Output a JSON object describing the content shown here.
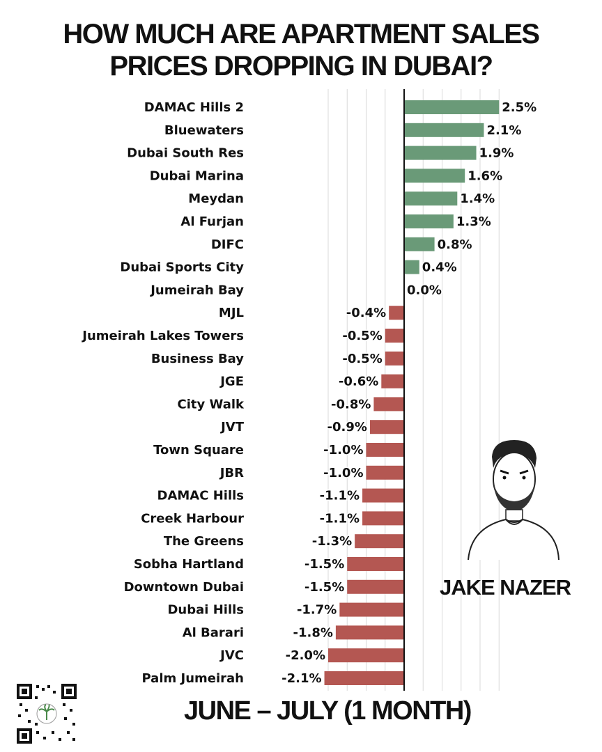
{
  "title_line1": "HOW MUCH ARE APARTMENT SALES",
  "title_line2": "PRICES DROPPING IN DUBAI?",
  "author_name": "JAKE NAZER",
  "colors": {
    "positive": "#6a9a78",
    "negative": "#b45752",
    "axis": "#111111",
    "grid": "#d8d8d8"
  },
  "chart_data": {
    "type": "bar",
    "orientation": "horizontal",
    "title": "HOW MUCH ARE APARTMENT SALES PRICES DROPPING IN DUBAI?",
    "xlabel": "JUNE – JULY (1 MONTH)",
    "ylabel": "",
    "grid": true,
    "xlim": [
      -2.3,
      2.7
    ],
    "categories": [
      "DAMAC Hills 2",
      "Bluewaters",
      "Dubai South Res",
      "Dubai Marina",
      "Meydan",
      "Al Furjan",
      "DIFC",
      "Dubai Sports City",
      "Jumeirah Bay",
      "MJL",
      "Jumeirah Lakes Towers",
      "Business Bay",
      "JGE",
      "City Walk",
      "JVT",
      "Town Square",
      "JBR",
      "DAMAC Hills",
      "Creek Harbour",
      "The Greens",
      "Sobha Hartland",
      "Downtown Dubai",
      "Dubai Hills",
      "Al Barari",
      "JVC",
      "Palm Jumeirah"
    ],
    "values": [
      2.5,
      2.1,
      1.9,
      1.6,
      1.4,
      1.3,
      0.8,
      0.4,
      0.0,
      -0.4,
      -0.5,
      -0.5,
      -0.6,
      -0.8,
      -0.9,
      -1.0,
      -1.0,
      -1.1,
      -1.1,
      -1.3,
      -1.5,
      -1.5,
      -1.7,
      -1.8,
      -2.0,
      -2.1
    ],
    "data_labels": [
      "2.5%",
      "2.1%",
      "1.9%",
      "1.6%",
      "1.4%",
      "1.3%",
      "0.8%",
      "0.4%",
      "0.0%",
      "-0.4%",
      "-0.5%",
      "-0.5%",
      "-0.6%",
      "-0.8%",
      "-0.9%",
      "-1.0%",
      "-1.0%",
      "-1.1%",
      "-1.1%",
      "-1.3%",
      "-1.5%",
      "-1.5%",
      "-1.7%",
      "-1.8%",
      "-2.0%",
      "-2.1%"
    ]
  }
}
